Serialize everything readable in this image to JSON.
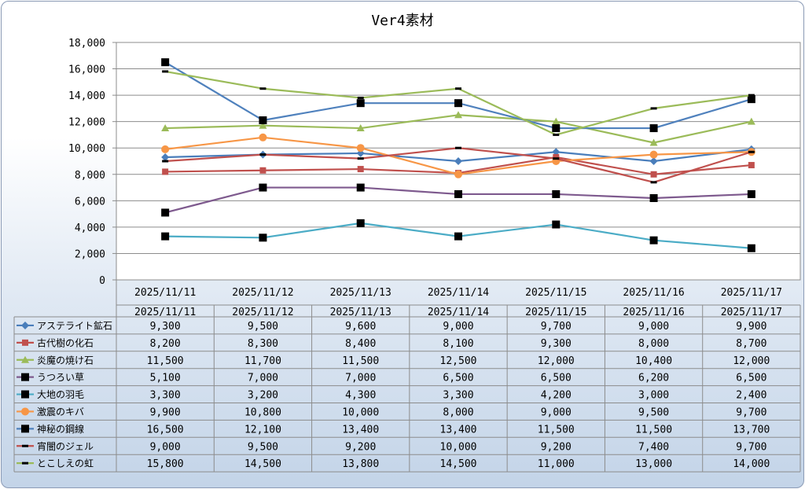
{
  "chart_data": {
    "type": "line",
    "title": "Ver4素材",
    "categories": [
      "2025/11/11",
      "2025/11/12",
      "2025/11/13",
      "2025/11/14",
      "2025/11/15",
      "2025/11/16",
      "2025/11/17"
    ],
    "ylim": [
      0,
      18000
    ],
    "yticks": [
      0,
      2000,
      4000,
      6000,
      8000,
      10000,
      12000,
      14000,
      16000,
      18000
    ],
    "ytick_labels": [
      "0",
      "2,000",
      "4,000",
      "6,000",
      "8,000",
      "10,000",
      "12,000",
      "14,000",
      "16,000",
      "18,000"
    ],
    "grid": true,
    "legend": "data-table",
    "series": [
      {
        "name": "アステライト鉱石",
        "color": "#4a7ebb",
        "marker": "diamond",
        "values": [
          9300,
          9500,
          9600,
          9000,
          9700,
          9000,
          9900
        ],
        "labels": [
          "9,300",
          "9,500",
          "9,600",
          "9,000",
          "9,700",
          "9,000",
          "9,900"
        ]
      },
      {
        "name": "古代樹の化石",
        "color": "#c0504d",
        "marker": "square",
        "values": [
          8200,
          8300,
          8400,
          8100,
          9300,
          8000,
          8700
        ],
        "labels": [
          "8,200",
          "8,300",
          "8,400",
          "8,100",
          "9,300",
          "8,000",
          "8,700"
        ]
      },
      {
        "name": "炎魔の焼け石",
        "color": "#9bbb59",
        "marker": "triangle",
        "values": [
          11500,
          11700,
          11500,
          12500,
          12000,
          10400,
          12000
        ],
        "labels": [
          "11,500",
          "11,700",
          "11,500",
          "12,500",
          "12,000",
          "10,400",
          "12,000"
        ]
      },
      {
        "name": "うつろい草",
        "color": "#7e5a8e",
        "marker": "blacksquare",
        "values": [
          5100,
          7000,
          7000,
          6500,
          6500,
          6200,
          6500
        ],
        "labels": [
          "5,100",
          "7,000",
          "7,000",
          "6,500",
          "6,500",
          "6,200",
          "6,500"
        ]
      },
      {
        "name": "大地の羽毛",
        "color": "#4bacc6",
        "marker": "blacksquare",
        "values": [
          3300,
          3200,
          4300,
          3300,
          4200,
          3000,
          2400
        ],
        "labels": [
          "3,300",
          "3,200",
          "4,300",
          "3,300",
          "4,200",
          "3,000",
          "2,400"
        ]
      },
      {
        "name": "激震のキバ",
        "color": "#f79646",
        "marker": "circle",
        "values": [
          9900,
          10800,
          10000,
          8000,
          9000,
          9500,
          9700
        ],
        "labels": [
          "9,900",
          "10,800",
          "10,000",
          "8,000",
          "9,000",
          "9,500",
          "9,700"
        ]
      },
      {
        "name": "神秘の鋼線",
        "color": "#4f81bd",
        "marker": "blacksquare",
        "values": [
          16500,
          12100,
          13400,
          13400,
          11500,
          11500,
          13700
        ],
        "labels": [
          "16,500",
          "12,100",
          "13,400",
          "13,400",
          "11,500",
          "11,500",
          "13,700"
        ]
      },
      {
        "name": "宵闇のジェル",
        "color": "#c0504d",
        "marker": "dash",
        "values": [
          9000,
          9500,
          9200,
          10000,
          9200,
          7400,
          9700
        ],
        "labels": [
          "9,000",
          "9,500",
          "9,200",
          "10,000",
          "9,200",
          "7,400",
          "9,700"
        ]
      },
      {
        "name": "とこしえの虹",
        "color": "#9bbb59",
        "marker": "dash",
        "values": [
          15800,
          14500,
          13800,
          14500,
          11000,
          13000,
          14000
        ],
        "labels": [
          "15,800",
          "14,500",
          "13,800",
          "14,500",
          "11,000",
          "13,000",
          "14,000"
        ]
      }
    ]
  }
}
